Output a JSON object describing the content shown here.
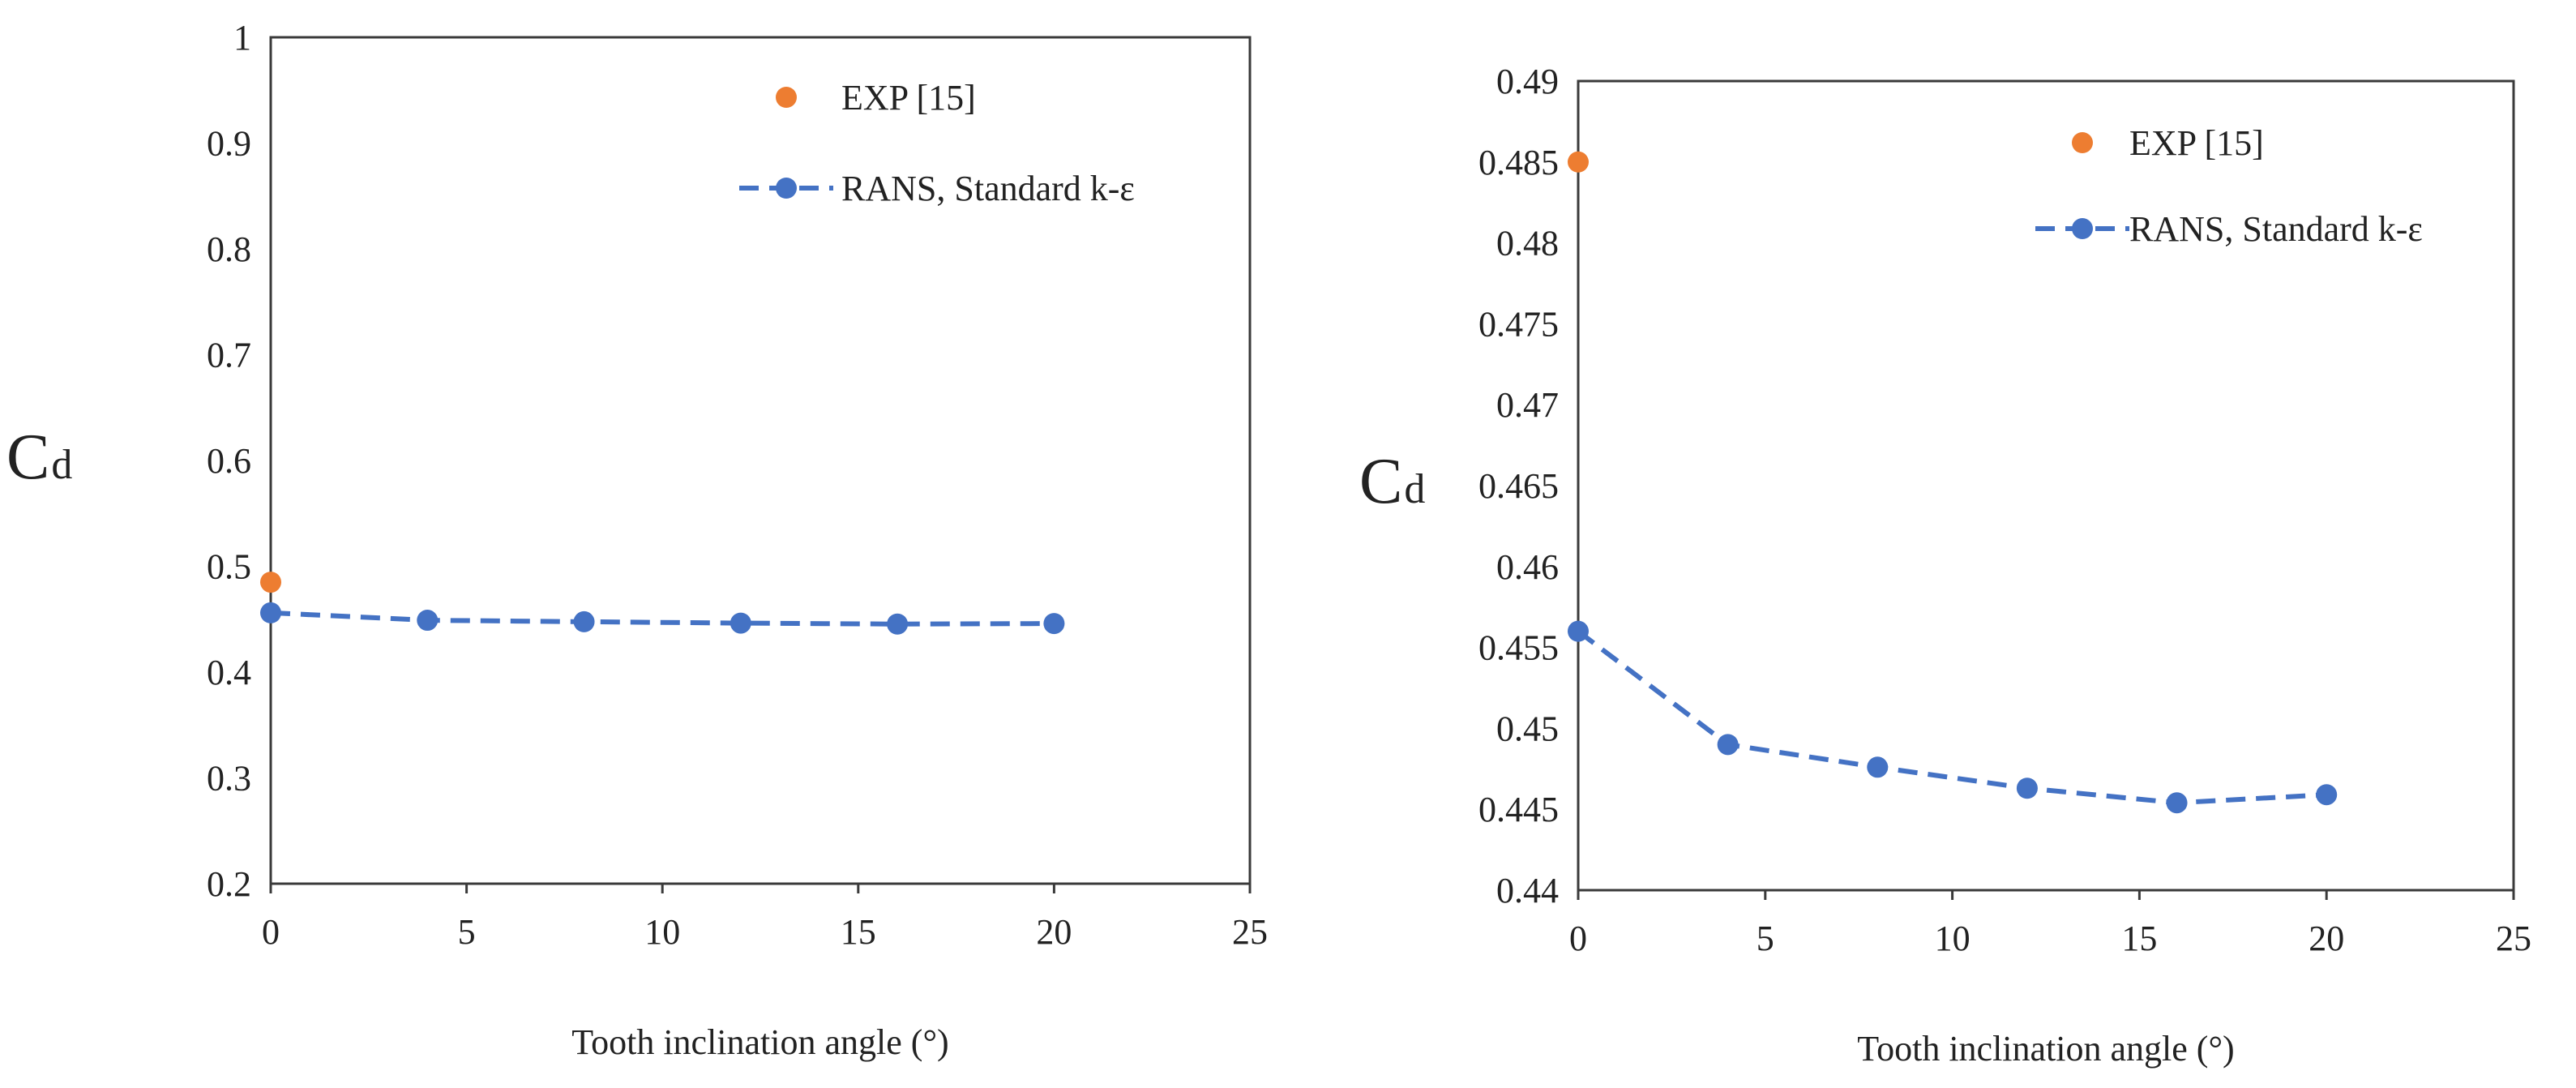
{
  "chart_data": [
    {
      "type": "scatter",
      "title": "",
      "xlabel": "Tooth inclination angle (°)",
      "ylabel_main": "C",
      "ylabel_sub": "d",
      "xlim": [
        0,
        25
      ],
      "ylim": [
        0.2,
        1
      ],
      "xticks": [
        "0",
        "5",
        "10",
        "15",
        "20",
        "25"
      ],
      "yticks": [
        "0.2",
        "0.3",
        "0.4",
        "0.5",
        "0.6",
        "0.7",
        "0.8",
        "0.9",
        "1"
      ],
      "legend_position": "top-right",
      "series": [
        {
          "name": "EXP [15]",
          "style": "marker",
          "color": "#ED7D31",
          "x": [
            0
          ],
          "y": [
            0.485
          ]
        },
        {
          "name": "RANS, Standard k-ε",
          "style": "dashed-line-marker",
          "color": "#4472C4",
          "x": [
            0,
            4,
            8,
            12,
            16,
            20
          ],
          "y": [
            0.456,
            0.449,
            0.4476,
            0.4463,
            0.4454,
            0.4459
          ]
        }
      ]
    },
    {
      "type": "scatter",
      "title": "",
      "xlabel": "Tooth inclination angle (°)",
      "ylabel_main": "C",
      "ylabel_sub": "d",
      "xlim": [
        0,
        25
      ],
      "ylim": [
        0.44,
        0.49
      ],
      "xticks": [
        "0",
        "5",
        "10",
        "15",
        "20",
        "25"
      ],
      "yticks": [
        "0.44",
        "0.445",
        "0.45",
        "0.455",
        "0.46",
        "0.465",
        "0.47",
        "0.475",
        "0.48",
        "0.485",
        "0.49"
      ],
      "legend_position": "top-right",
      "series": [
        {
          "name": "EXP [15]",
          "style": "marker",
          "color": "#ED7D31",
          "x": [
            0
          ],
          "y": [
            0.485
          ]
        },
        {
          "name": "RANS, Standard k-ε",
          "style": "dashed-line-marker",
          "color": "#4472C4",
          "x": [
            0,
            4,
            8,
            12,
            16,
            20
          ],
          "y": [
            0.456,
            0.449,
            0.4476,
            0.4463,
            0.4454,
            0.4459
          ]
        }
      ]
    }
  ]
}
